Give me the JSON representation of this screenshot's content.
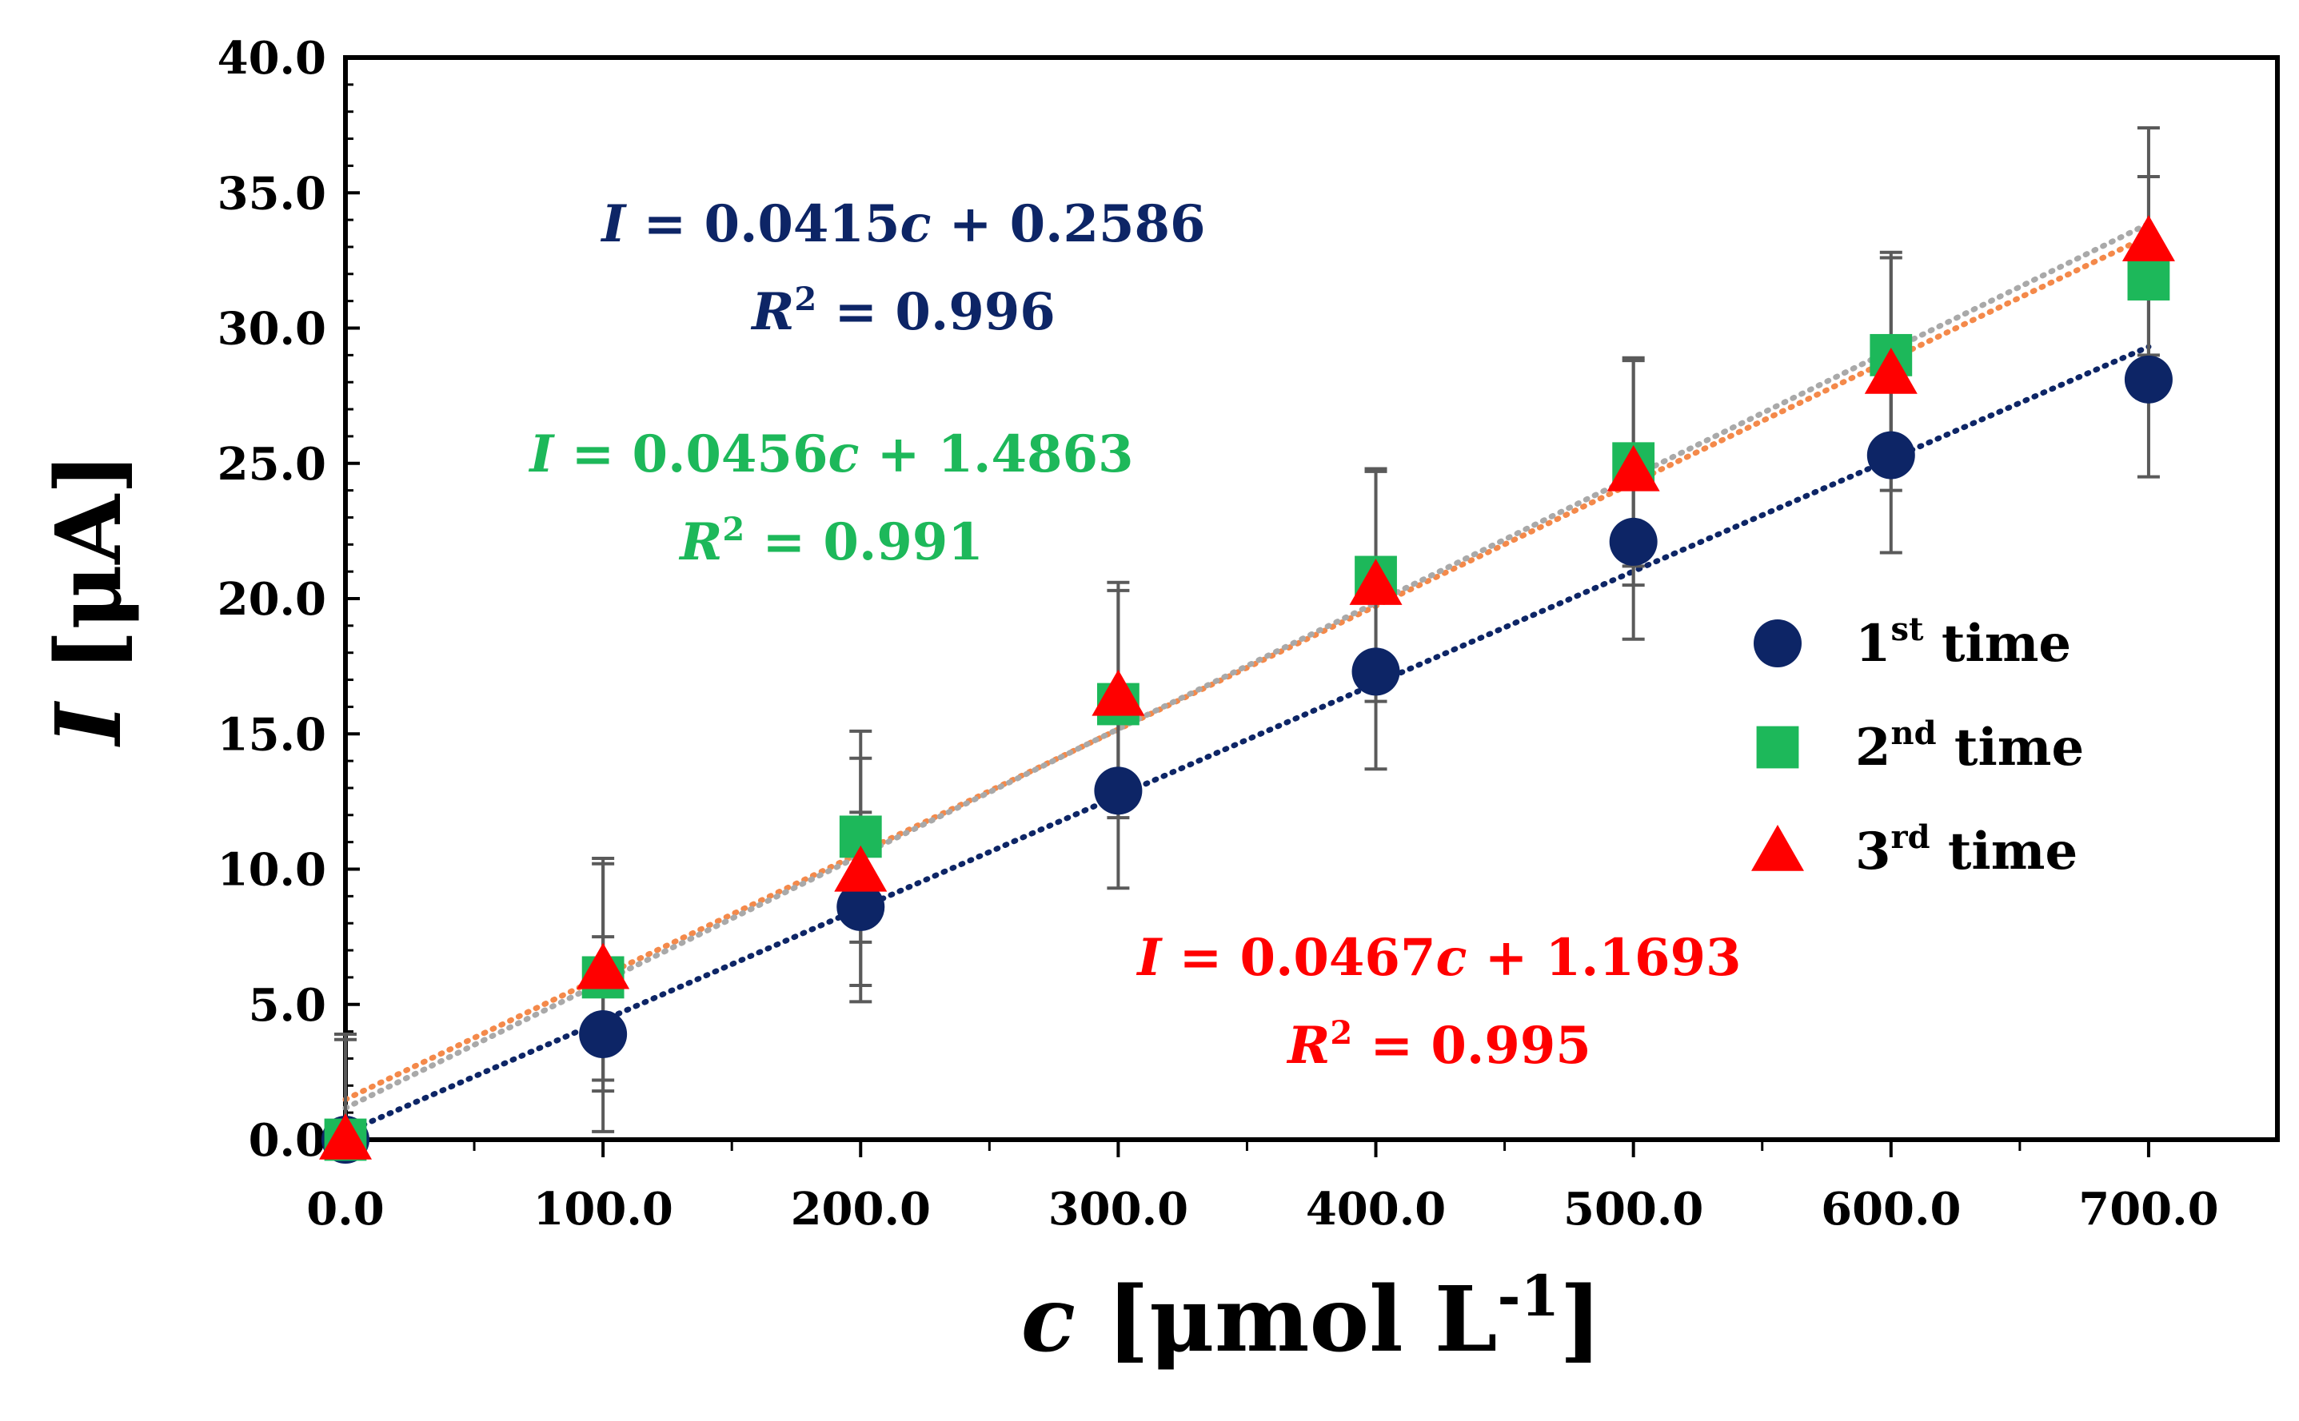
{
  "chart_data": {
    "type": "scatter",
    "title": "",
    "xlabel_italic": "c",
    "xlabel_rest": " [μmol L",
    "xlabel_sup": "-1",
    "xlabel_end": "]",
    "ylabel_italic": "I",
    "ylabel_rest": " [μA]",
    "xlim": [
      0,
      750
    ],
    "ylim": [
      0,
      40
    ],
    "x_ticks": [
      0,
      100,
      200,
      300,
      400,
      500,
      600,
      700
    ],
    "x_tick_labels": [
      "0.0",
      "100.0",
      "200.0",
      "300.0",
      "400.0",
      "500.0",
      "600.0",
      "700.0"
    ],
    "y_ticks": [
      0,
      5,
      10,
      15,
      20,
      25,
      30,
      35,
      40
    ],
    "y_tick_labels": [
      "0.0",
      "5.0",
      "10.0",
      "15.0",
      "20.0",
      "25.0",
      "30.0",
      "35.0",
      "40.0"
    ],
    "grid": false,
    "legend_position": "center-right",
    "series": [
      {
        "name": "1st time",
        "legend_num": "1",
        "legend_sup": "st",
        "legend_text": " time",
        "marker": "circle",
        "color": "#0d2566",
        "x": [
          0,
          100,
          200,
          300,
          400,
          500,
          600,
          700
        ],
        "y": [
          0.0,
          3.9,
          8.6,
          12.9,
          17.3,
          22.1,
          25.3,
          28.1
        ],
        "err": [
          3.9,
          3.6,
          3.5,
          3.6,
          3.6,
          3.6,
          3.6,
          3.6
        ],
        "fit": {
          "slope": 0.0415,
          "intercept": 0.2586,
          "color": "#0d2566"
        }
      },
      {
        "name": "2nd time",
        "legend_num": "2",
        "legend_sup": "nd",
        "legend_text": " time",
        "marker": "square",
        "color": "#1db85a",
        "x": [
          0,
          100,
          200,
          300,
          400,
          500,
          600,
          700
        ],
        "y": [
          0.0,
          6.0,
          11.2,
          16.1,
          20.8,
          25.0,
          29.0,
          31.8
        ],
        "err": [
          3.9,
          4.2,
          3.9,
          4.2,
          3.9,
          3.8,
          3.8,
          3.8
        ],
        "fit": {
          "slope": 0.0456,
          "intercept": 1.4863,
          "color": "#f4894a"
        }
      },
      {
        "name": "3rd time",
        "legend_num": "3",
        "legend_sup": "rd",
        "legend_text": "  time",
        "marker": "triangle",
        "color": "#ff0000",
        "x": [
          0,
          100,
          200,
          300,
          400,
          500,
          600,
          700
        ],
        "y": [
          0.0,
          6.3,
          9.9,
          16.4,
          20.5,
          24.7,
          28.3,
          33.2
        ],
        "err": [
          3.7,
          4.1,
          4.2,
          4.2,
          4.3,
          4.2,
          4.3,
          4.2
        ],
        "fit": {
          "slope": 0.0467,
          "intercept": 1.1693,
          "color": "#a9a9a9"
        }
      }
    ],
    "annotations": [
      {
        "series": 0,
        "color": "#0d2566",
        "eq_var": "I",
        "eq_mid": " = 0.0415",
        "eq_c": "c",
        "eq_end": " + 0.2586",
        "r2_var": "R",
        "r2_sup": "2",
        "r2_val": " = 0.996"
      },
      {
        "series": 1,
        "color": "#1db85a",
        "eq_var": "I",
        "eq_mid": " = 0.0456",
        "eq_c": "c",
        "eq_end": " + 1.4863",
        "r2_var": "R",
        "r2_sup": "2",
        "r2_val": " = 0.991"
      },
      {
        "series": 2,
        "color": "#ff0000",
        "eq_var": "I",
        "eq_mid": " = 0.0467",
        "eq_c": "c",
        "eq_end": " + 1.1693",
        "r2_var": "R",
        "r2_sup": "2",
        "r2_val": " = 0.995"
      }
    ]
  }
}
